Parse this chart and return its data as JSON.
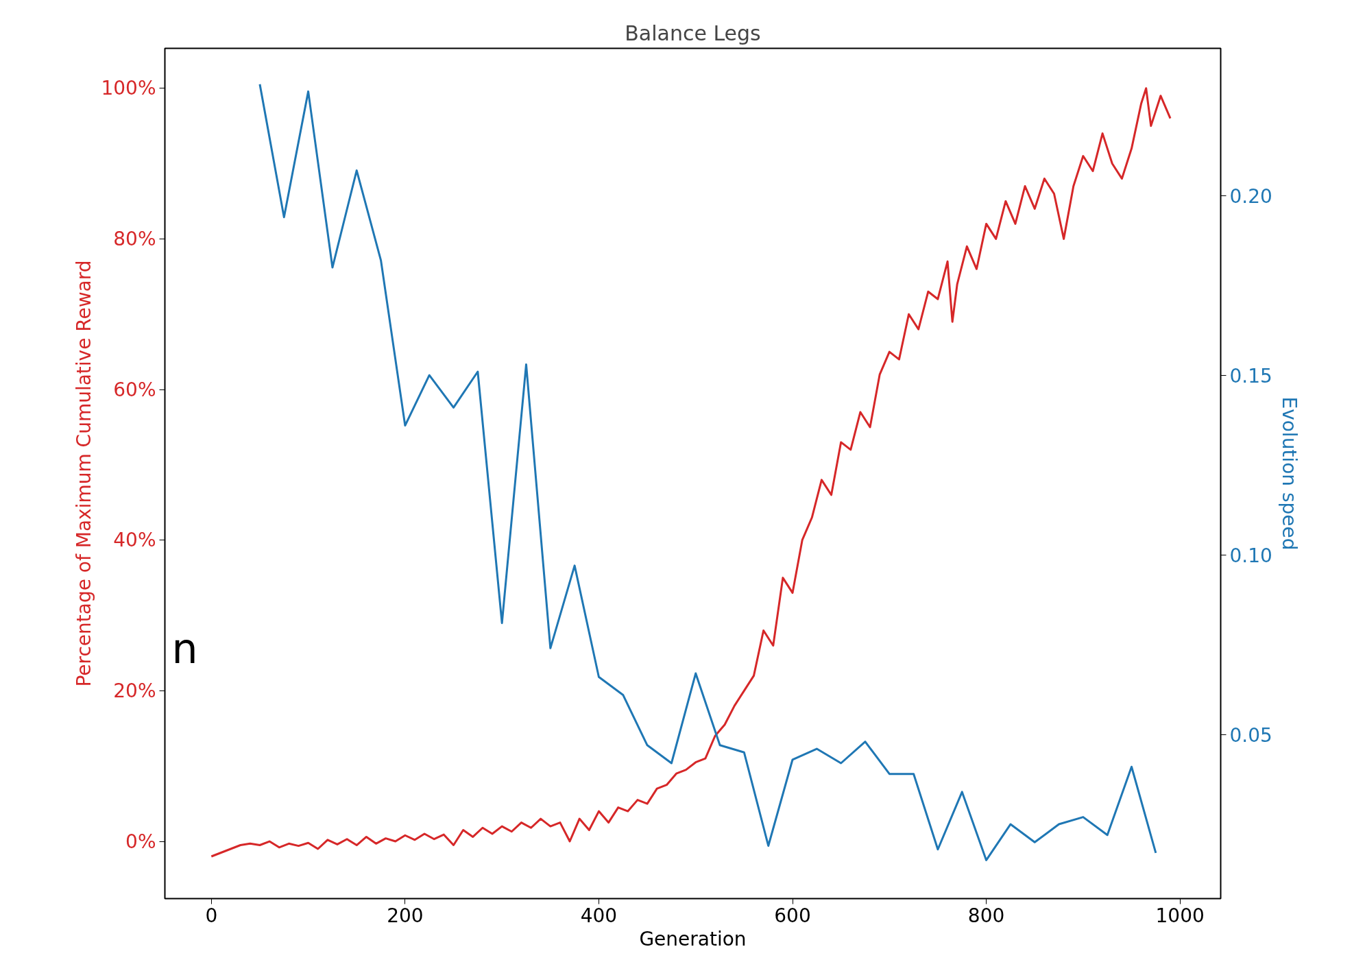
{
  "chart_data": {
    "type": "line",
    "title": "Balance Legs",
    "xlabel": "Generation",
    "ylabel": "Percentage of Maximum Cumulative Reward",
    "y2label": "Evolution speed",
    "xlim": [
      -48,
      1042
    ],
    "xticks": [
      0,
      200,
      400,
      600,
      800,
      1000
    ],
    "ylim": [
      -7.6,
      105.3
    ],
    "yticks": [
      {
        "value": 0,
        "label": "0%"
      },
      {
        "value": 20,
        "label": "20%"
      },
      {
        "value": 40,
        "label": "40%"
      },
      {
        "value": 60,
        "label": "60%"
      },
      {
        "value": 80,
        "label": "80%"
      },
      {
        "value": 100,
        "label": "100%"
      }
    ],
    "y2lim": [
      0.0043,
      0.241
    ],
    "y2ticks": [
      {
        "value": 0.05,
        "label": "0.05"
      },
      {
        "value": 0.1,
        "label": "0.10"
      },
      {
        "value": 0.15,
        "label": "0.15"
      },
      {
        "value": 0.2,
        "label": "0.20"
      }
    ],
    "grid": false,
    "marker": "none",
    "line_style": "solid",
    "annotations": [
      "n"
    ],
    "series": [
      {
        "color": "#d62728",
        "x": [
          0,
          10,
          20,
          30,
          40,
          50,
          60,
          70,
          80,
          90,
          100,
          110,
          120,
          130,
          140,
          150,
          160,
          170,
          180,
          190,
          200,
          210,
          220,
          230,
          240,
          250,
          260,
          270,
          280,
          290,
          300,
          310,
          320,
          330,
          340,
          350,
          360,
          370,
          380,
          390,
          400,
          410,
          420,
          430,
          440,
          450,
          460,
          470,
          480,
          490,
          500,
          510,
          520,
          530,
          540,
          550,
          560,
          570,
          580,
          590,
          600,
          610,
          620,
          630,
          640,
          650,
          660,
          670,
          680,
          690,
          700,
          710,
          720,
          730,
          740,
          750,
          760,
          765,
          770,
          780,
          790,
          800,
          810,
          820,
          830,
          840,
          850,
          860,
          870,
          880,
          890,
          900,
          910,
          920,
          930,
          940,
          950,
          960,
          965,
          970,
          980,
          990
        ],
        "values": [
          -2,
          -1.5,
          -1,
          -0.5,
          -0.3,
          -0.5,
          0,
          -0.8,
          -0.3,
          -0.6,
          -0.2,
          -1,
          0.2,
          -0.4,
          0.3,
          -0.5,
          0.6,
          -0.3,
          0.4,
          0,
          0.8,
          0.2,
          1,
          0.3,
          0.9,
          -0.5,
          1.5,
          0.6,
          1.8,
          1,
          2,
          1.3,
          2.5,
          1.8,
          3,
          2,
          2.5,
          0,
          3,
          1.5,
          4,
          2.5,
          4.5,
          4,
          5.5,
          5,
          7,
          7.5,
          9,
          9.5,
          10.5,
          11,
          14,
          15.5,
          18,
          20,
          22,
          28,
          26,
          35,
          33,
          40,
          43,
          48,
          46,
          53,
          52,
          57,
          55,
          62,
          65,
          64,
          70,
          68,
          73,
          72,
          77,
          69,
          74,
          79,
          76,
          82,
          80,
          85,
          82,
          87,
          84,
          88,
          86,
          80,
          87,
          91,
          89,
          94,
          90,
          88,
          92,
          98,
          100,
          95,
          99,
          96
        ]
      },
      {
        "color": "#1f77b4",
        "axis": "y2",
        "x": [
          50,
          75,
          100,
          125,
          150,
          175,
          200,
          225,
          250,
          275,
          300,
          325,
          350,
          375,
          400,
          425,
          450,
          475,
          500,
          525,
          550,
          575,
          600,
          625,
          650,
          675,
          700,
          725,
          750,
          775,
          800,
          825,
          850,
          875,
          900,
          925,
          950,
          975
        ],
        "values": [
          0.231,
          0.194,
          0.229,
          0.18,
          0.207,
          0.182,
          0.136,
          0.15,
          0.141,
          0.151,
          0.081,
          0.153,
          0.074,
          0.097,
          0.066,
          0.061,
          0.047,
          0.042,
          0.067,
          0.047,
          0.045,
          0.019,
          0.043,
          0.046,
          0.042,
          0.048,
          0.039,
          0.039,
          0.018,
          0.034,
          0.015,
          0.025,
          0.02,
          0.025,
          0.027,
          0.022,
          0.041,
          0.017
        ]
      }
    ]
  }
}
